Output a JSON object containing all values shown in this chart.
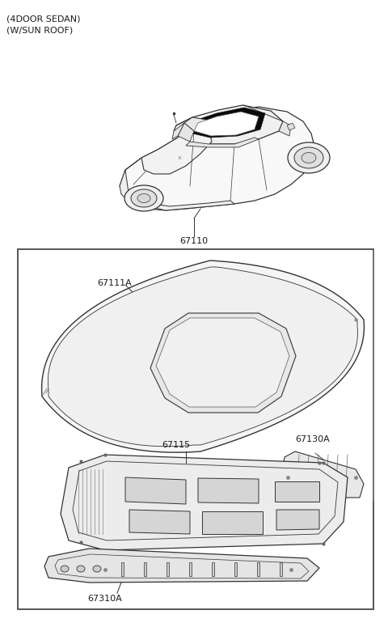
{
  "title_line1": "(4DOOR SEDAN)",
  "title_line2": "(W/SUN ROOF)",
  "background_color": "#ffffff",
  "line_color": "#333333",
  "fig_width": 4.8,
  "fig_height": 7.7,
  "dpi": 100,
  "label_67110": "67110",
  "label_67111A": "67111A",
  "label_67115": "67115",
  "label_67130A": "67130A",
  "label_67310A": "67310A"
}
